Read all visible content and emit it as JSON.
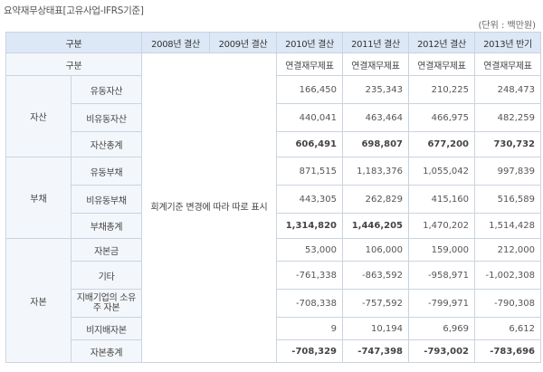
{
  "title": "요약재무상태표[고유사업-IFRS기준]",
  "unit": "(단위 : 백만원)",
  "header": {
    "col_gubun": "구분",
    "periods": [
      "2008년 결산",
      "2009년 결산",
      "2010년 결산",
      "2011년 결산",
      "2012년 결산",
      "2013년 반기"
    ]
  },
  "subheader": {
    "label": "구분",
    "types": [
      "연결재무제표",
      "연결재무제표",
      "연결재무제표",
      "연결재무제표"
    ]
  },
  "note": "회계기준 변경에 따라 따로 표시",
  "groups": [
    {
      "name": "자산",
      "rows": [
        {
          "item": "유동자산",
          "values": [
            "166,450",
            "235,343",
            "210,225",
            "248,473"
          ],
          "bold": [
            false,
            false,
            false,
            false
          ]
        },
        {
          "item": "비유동자산",
          "values": [
            "440,041",
            "463,464",
            "466,975",
            "482,259"
          ],
          "bold": [
            false,
            false,
            false,
            false
          ]
        },
        {
          "item": "자산총계",
          "values": [
            "606,491",
            "698,807",
            "677,200",
            "730,732"
          ],
          "bold": [
            true,
            true,
            true,
            true
          ]
        }
      ]
    },
    {
      "name": "부채",
      "rows": [
        {
          "item": "유동부채",
          "values": [
            "871,515",
            "1,183,376",
            "1,055,042",
            "997,839"
          ],
          "bold": [
            false,
            false,
            false,
            false
          ]
        },
        {
          "item": "비유동부채",
          "values": [
            "443,305",
            "262,829",
            "415,160",
            "516,589"
          ],
          "bold": [
            false,
            false,
            false,
            false
          ]
        },
        {
          "item": "부채총계",
          "values": [
            "1,314,820",
            "1,446,205",
            "1,470,202",
            "1,514,428"
          ],
          "bold": [
            true,
            true,
            false,
            false
          ]
        }
      ]
    },
    {
      "name": "자본",
      "rows": [
        {
          "item": "자본금",
          "values": [
            "53,000",
            "106,000",
            "159,000",
            "212,000"
          ],
          "bold": [
            false,
            false,
            false,
            false
          ]
        },
        {
          "item": "기타",
          "values": [
            "-761,338",
            "-863,592",
            "-958,971",
            "-1,002,308"
          ],
          "bold": [
            false,
            false,
            false,
            false
          ]
        },
        {
          "item": "지배기업의 소유주 자본",
          "values": [
            "-708,338",
            "-757,592",
            "-799,971",
            "-790,308"
          ],
          "bold": [
            false,
            false,
            false,
            false
          ]
        },
        {
          "item": "비지배자본",
          "values": [
            "9",
            "10,194",
            "6,969",
            "6,612"
          ],
          "bold": [
            false,
            false,
            false,
            false
          ]
        },
        {
          "item": "자본총계",
          "values": [
            "-708,329",
            "-747,398",
            "-793,002",
            "-783,696"
          ],
          "bold": [
            true,
            true,
            true,
            true
          ]
        }
      ]
    }
  ]
}
